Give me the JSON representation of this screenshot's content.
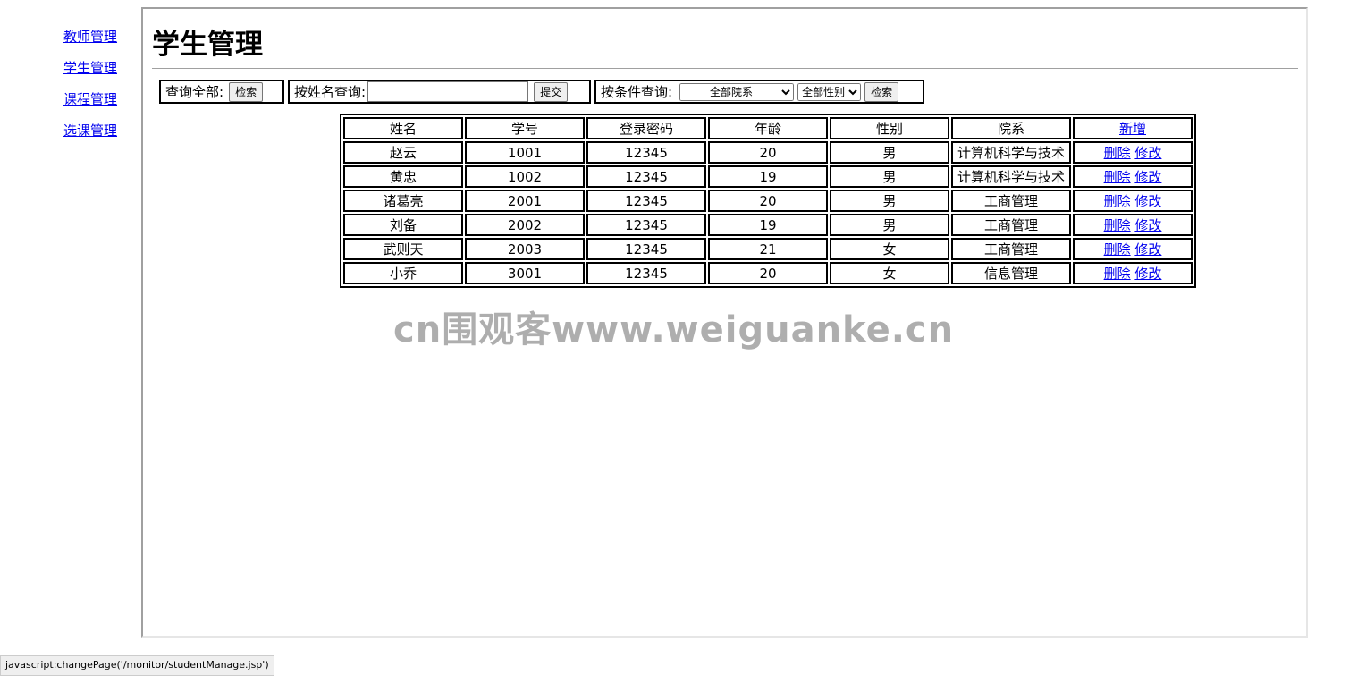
{
  "sidebar": {
    "items": [
      {
        "label": "教师管理"
      },
      {
        "label": "学生管理"
      },
      {
        "label": "课程管理"
      },
      {
        "label": "选课管理"
      }
    ]
  },
  "page": {
    "title": "学生管理"
  },
  "search": {
    "all_label": "查询全部:",
    "all_button": "检索",
    "name_label": "按姓名查询:",
    "name_value": "",
    "name_button": "提交",
    "cond_label": "按条件查询:",
    "dept_selected": "全部院系",
    "gender_selected": "全部性别",
    "cond_button": "检索"
  },
  "table": {
    "headers": [
      "姓名",
      "学号",
      "登录密码",
      "年龄",
      "性别",
      "院系"
    ],
    "add_label": "新增",
    "delete_label": "删除",
    "edit_label": "修改",
    "rows": [
      [
        "赵云",
        "1001",
        "12345",
        "20",
        "男",
        "计算机科学与技术"
      ],
      [
        "黄忠",
        "1002",
        "12345",
        "19",
        "男",
        "计算机科学与技术"
      ],
      [
        "诸葛亮",
        "2001",
        "12345",
        "20",
        "男",
        "工商管理"
      ],
      [
        "刘备",
        "2002",
        "12345",
        "19",
        "男",
        "工商管理"
      ],
      [
        "武则天",
        "2003",
        "12345",
        "21",
        "女",
        "工商管理"
      ],
      [
        "小乔",
        "3001",
        "12345",
        "20",
        "女",
        "信息管理"
      ]
    ]
  },
  "watermark": "cn围观客www.weiguanke.cn",
  "status_bar": "javascript:changePage('/monitor/studentManage.jsp')"
}
